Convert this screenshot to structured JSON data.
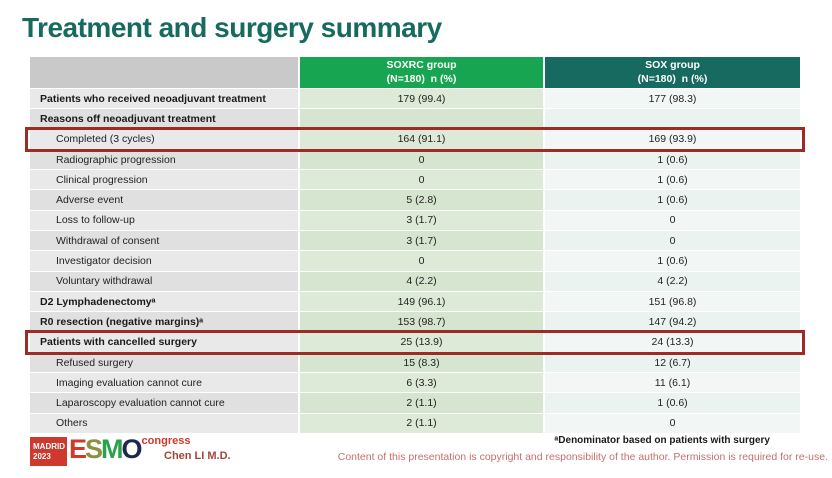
{
  "title": "Treatment and surgery summary",
  "table": {
    "header": {
      "col_label": "",
      "col2_line1": "SOXRC group",
      "col2_line2": "(N=180)  n (%)",
      "col3_line1": "SOX group",
      "col3_line2": "(N=180)  n (%)"
    },
    "rows": [
      {
        "label": "Patients who received neoadjuvant treatment",
        "soxrc": "179 (99.4)",
        "sox": "177 (98.3)"
      },
      {
        "label": "Reasons off neoadjuvant treatment",
        "soxrc": "",
        "sox": ""
      },
      {
        "label": "Completed (3 cycles)",
        "soxrc": "164 (91.1)",
        "sox": "169 (93.9)"
      },
      {
        "label": "Radiographic progression",
        "soxrc": "0",
        "sox": "1 (0.6)"
      },
      {
        "label": "Clinical progression",
        "soxrc": "0",
        "sox": "1 (0.6)"
      },
      {
        "label": "Adverse event",
        "soxrc": "5 (2.8)",
        "sox": "1 (0.6)"
      },
      {
        "label": "Loss to follow-up",
        "soxrc": "3 (1.7)",
        "sox": "0"
      },
      {
        "label": "Withdrawal of consent",
        "soxrc": "3 (1.7)",
        "sox": "0"
      },
      {
        "label": "Investigator decision",
        "soxrc": "0",
        "sox": "1 (0.6)"
      },
      {
        "label": "Voluntary withdrawal",
        "soxrc": "4 (2.2)",
        "sox": "4 (2.2)"
      },
      {
        "label": "D2 Lymphadenectomyᵃ",
        "soxrc": "149 (96.1)",
        "sox": "151 (96.8)"
      },
      {
        "label": "R0 resection (negative margins)ᵃ",
        "soxrc": "153 (98.7)",
        "sox": "147 (94.2)"
      },
      {
        "label": "Patients with cancelled surgery",
        "soxrc": "25 (13.9)",
        "sox": "24 (13.3)"
      },
      {
        "label": "Refused surgery",
        "soxrc": "15 (8.3)",
        "sox": "12 (6.7)"
      },
      {
        "label": "Imaging evaluation cannot cure",
        "soxrc": "6 (3.3)",
        "sox": "11 (6.1)"
      },
      {
        "label": "Laparoscopy evaluation cannot cure",
        "soxrc": "2 (1.1)",
        "sox": "1 (0.6)"
      },
      {
        "label": "Others",
        "soxrc": "2 (1.1)",
        "sox": "0"
      }
    ]
  },
  "footer": {
    "logo": {
      "city": "MADRID",
      "year": "2023",
      "letters": [
        "E",
        "S",
        "M",
        "O"
      ],
      "congress": "congress"
    },
    "presenter": "Chen LI M.D.",
    "footnote": "ᵃDenominator based on patients with surgery",
    "copyright": "Content of this presentation is copyright and responsibility of the author. Permission is required for re-use."
  },
  "colors": {
    "title": "#176a5e",
    "header_soxrc": "#18a551",
    "header_sox": "#166a60",
    "highlight_border": "#9d2c26",
    "presenter_text": "#a5443a",
    "copyright_text": "#c4706c"
  }
}
